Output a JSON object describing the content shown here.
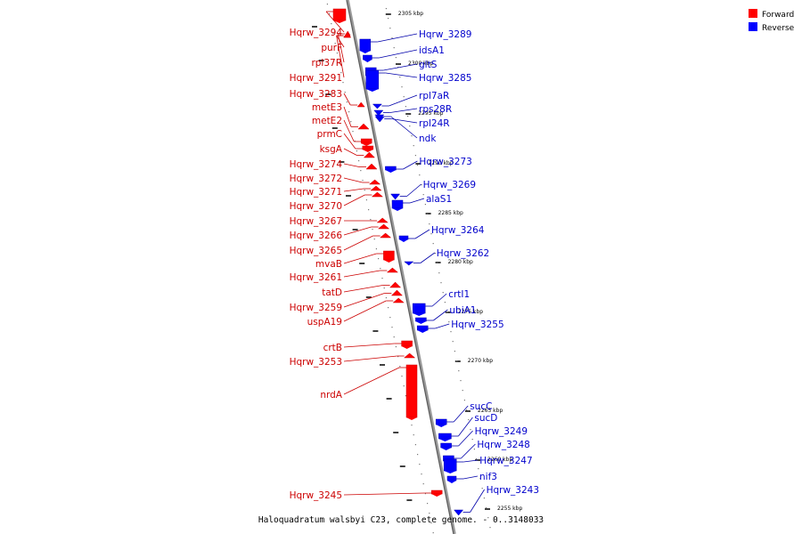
{
  "caption": "Haloquadratum walsbyi C23, complete genome. - 0..3148033",
  "legend": [
    {
      "label": "Forward",
      "color": "#ff0000"
    },
    {
      "label": "Reverse",
      "color": "#0000ff"
    }
  ],
  "ticks": [
    "2305 kbp",
    "2300 kbp",
    "2295 kbp",
    "2290 kbp",
    "2285 kbp",
    "2280 kbp",
    "2275 kbp",
    "2270 kbp",
    "2265 kbp",
    "2260 kbp",
    "2255 kbp"
  ],
  "forward_genes": [
    "Hqrw_3294",
    "purF",
    "rpl37R",
    "Hqrw_3291",
    "Hqrw_3283",
    "metE3",
    "metE2",
    "prmC",
    "ksgA",
    "Hqrw_3274",
    "Hqrw_3272",
    "Hqrw_3271",
    "Hqrw_3270",
    "Hqrw_3267",
    "Hqrw_3266",
    "Hqrw_3265",
    "mvaB",
    "Hqrw_3261",
    "tatD",
    "Hqrw_3259",
    "uspA19",
    "crtB",
    "Hqrw_3253",
    "nrdA",
    "Hqrw_3245"
  ],
  "reverse_genes": [
    "Hqrw_3289",
    "idsA1",
    "gltS",
    "Hqrw_3285",
    "rpl7aR",
    "rps28R",
    "rpl24R",
    "ndk",
    "Hqrw_3273",
    "Hqrw_3269",
    "alaS1",
    "Hqrw_3264",
    "Hqrw_3262",
    "crtI1",
    "ubiA1",
    "Hqrw_3255",
    "sucC",
    "sucD",
    "Hqrw_3249",
    "Hqrw_3248",
    "Hqrw_3247",
    "nif3",
    "Hqrw_3243"
  ]
}
